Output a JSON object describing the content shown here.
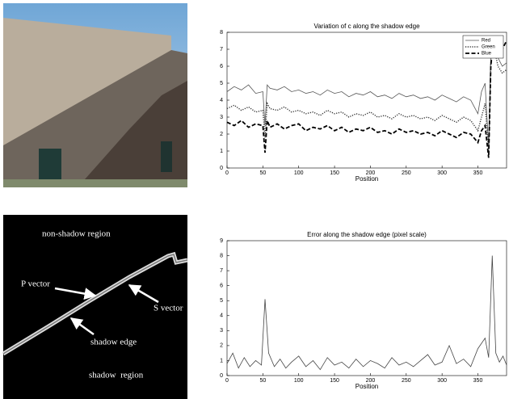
{
  "chart_data": [
    {
      "type": "line",
      "title": "Variation of c along the shadow edge",
      "xlabel": "Position",
      "x": [
        0,
        10,
        20,
        30,
        40,
        50,
        53,
        56,
        60,
        70,
        80,
        90,
        100,
        110,
        120,
        130,
        140,
        150,
        160,
        170,
        180,
        190,
        200,
        210,
        220,
        230,
        240,
        250,
        260,
        270,
        280,
        290,
        300,
        310,
        320,
        330,
        340,
        350,
        355,
        360,
        365,
        368,
        372,
        378,
        384,
        390
      ],
      "series": [
        {
          "name": "Red",
          "color": "#555555",
          "style": "solid",
          "width": 0.8,
          "values": [
            4.5,
            4.8,
            4.6,
            4.9,
            4.4,
            4.5,
            2.5,
            4.9,
            4.7,
            4.6,
            4.8,
            4.5,
            4.6,
            4.4,
            4.5,
            4.3,
            4.6,
            4.4,
            4.5,
            4.2,
            4.4,
            4.3,
            4.5,
            4.2,
            4.3,
            4.1,
            4.4,
            4.2,
            4.3,
            4.1,
            4.2,
            4.0,
            4.3,
            4.1,
            3.9,
            4.2,
            4.0,
            3.2,
            4.5,
            5.0,
            1.2,
            6.8,
            7.5,
            6.5,
            6.0,
            6.2
          ]
        },
        {
          "name": "Green",
          "color": "#333333",
          "style": "dotted",
          "width": 1.4,
          "values": [
            3.5,
            3.7,
            3.4,
            3.6,
            3.3,
            3.4,
            1.8,
            3.8,
            3.5,
            3.4,
            3.6,
            3.3,
            3.4,
            3.2,
            3.3,
            3.1,
            3.4,
            3.2,
            3.3,
            3.0,
            3.2,
            3.1,
            3.3,
            3.0,
            3.1,
            2.9,
            3.2,
            3.0,
            3.1,
            2.9,
            3.0,
            2.8,
            3.1,
            2.9,
            2.7,
            3.0,
            2.8,
            2.2,
            3.0,
            3.8,
            0.9,
            6.2,
            7.2,
            6.0,
            5.6,
            5.8
          ]
        },
        {
          "name": "Blue",
          "color": "#000000",
          "style": "dashed",
          "width": 1.8,
          "values": [
            2.7,
            2.5,
            2.8,
            2.4,
            2.6,
            2.5,
            0.9,
            2.8,
            2.4,
            2.6,
            2.3,
            2.5,
            2.6,
            2.2,
            2.4,
            2.3,
            2.5,
            2.2,
            2.4,
            2.1,
            2.3,
            2.2,
            2.4,
            2.1,
            2.2,
            2.0,
            2.3,
            2.1,
            2.2,
            2.0,
            2.1,
            1.9,
            2.2,
            2.0,
            1.8,
            2.1,
            2.0,
            1.5,
            2.2,
            2.5,
            0.6,
            6.0,
            7.6,
            7.2,
            7.0,
            7.5
          ]
        }
      ],
      "xlim": [
        0,
        390
      ],
      "xticks": [
        0,
        50,
        100,
        150,
        200,
        250,
        300,
        350
      ],
      "ylim": [
        0,
        8
      ],
      "yticks": [
        0,
        1,
        2,
        3,
        4,
        5,
        6,
        7,
        8
      ],
      "legend": "upper right"
    },
    {
      "type": "line",
      "title": "Error along the shadow edge (pixel scale)",
      "xlabel": "Position",
      "x": [
        0,
        8,
        16,
        24,
        32,
        40,
        48,
        53,
        58,
        66,
        74,
        82,
        90,
        100,
        110,
        120,
        130,
        140,
        150,
        160,
        170,
        180,
        190,
        200,
        210,
        220,
        230,
        240,
        250,
        260,
        270,
        280,
        290,
        300,
        310,
        320,
        330,
        340,
        350,
        360,
        365,
        370,
        375,
        380,
        385,
        390
      ],
      "series": [
        {
          "color": "#444444",
          "style": "solid",
          "width": 0.8,
          "values": [
            0.8,
            1.5,
            0.5,
            1.2,
            0.6,
            1.0,
            0.7,
            5.1,
            1.5,
            0.6,
            1.1,
            0.5,
            0.9,
            1.3,
            0.6,
            1.0,
            0.4,
            1.2,
            0.7,
            0.9,
            0.5,
            1.1,
            0.6,
            1.0,
            0.8,
            0.5,
            1.2,
            0.7,
            0.9,
            0.6,
            1.0,
            1.4,
            0.7,
            0.9,
            2.0,
            0.8,
            1.1,
            0.6,
            1.8,
            2.5,
            1.2,
            8.0,
            1.5,
            0.9,
            1.3,
            0.7
          ]
        }
      ],
      "xlim": [
        0,
        390
      ],
      "xticks": [
        0,
        50,
        100,
        150,
        200,
        250,
        300,
        350
      ],
      "ylim": [
        0,
        9
      ],
      "yticks": [
        0,
        1,
        2,
        3,
        4,
        5,
        6,
        7,
        8,
        9
      ]
    }
  ],
  "diagram": {
    "labels": {
      "top": "non-shadow region",
      "p": "P vector",
      "s": "S vector",
      "edge": "shadow edge",
      "bottom": "shadow  region"
    }
  }
}
